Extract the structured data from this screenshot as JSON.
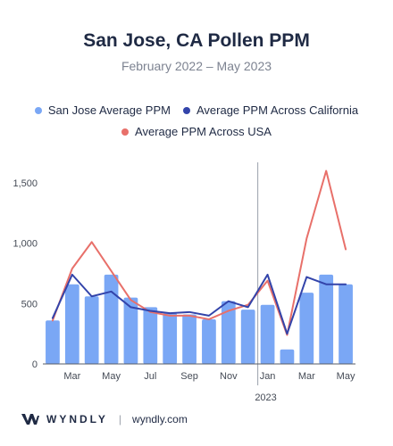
{
  "chart_data": {
    "type": "bar",
    "title": "San Jose, CA Pollen PPM",
    "subtitle": "February 2022 – May 2023",
    "x": [
      "Feb 2022",
      "Mar 2022",
      "Apr 2022",
      "May 2022",
      "Jun 2022",
      "Jul 2022",
      "Aug 2022",
      "Sep 2022",
      "Oct 2022",
      "Nov 2022",
      "Dec 2022",
      "Jan 2023",
      "Feb 2023",
      "Mar 2023",
      "Apr 2023",
      "May 2023"
    ],
    "x_tick_labels": [
      {
        "index": 1,
        "label": "Mar"
      },
      {
        "index": 3,
        "label": "May"
      },
      {
        "index": 5,
        "label": "Jul"
      },
      {
        "index": 7,
        "label": "Sep"
      },
      {
        "index": 9,
        "label": "Nov"
      },
      {
        "index": 11,
        "label": "Jan"
      },
      {
        "index": 13,
        "label": "Mar"
      },
      {
        "index": 15,
        "label": "May"
      }
    ],
    "year_label": {
      "index": 11,
      "label": "2023"
    },
    "ylim": [
      0,
      1700
    ],
    "y_ticks": [
      0,
      500,
      1000,
      1500
    ],
    "y_tick_labels": [
      "0",
      "500",
      "1,000",
      "1,500"
    ],
    "grid": false,
    "legend_position": "top",
    "divider_index": 10.5,
    "series": [
      {
        "name": "San Jose Average PPM",
        "type": "bar",
        "color": "#7aa7f5",
        "values": [
          360,
          660,
          560,
          740,
          550,
          470,
          420,
          410,
          370,
          520,
          450,
          490,
          120,
          590,
          740,
          660
        ]
      },
      {
        "name": "Average PPM Across California",
        "type": "line",
        "color": "#3344aa",
        "values": [
          380,
          740,
          560,
          600,
          470,
          440,
          420,
          430,
          400,
          520,
          470,
          740,
          250,
          720,
          660,
          660
        ]
      },
      {
        "name": "Average PPM Across USA",
        "type": "line",
        "color": "#e8706a",
        "values": [
          360,
          790,
          1010,
          770,
          530,
          430,
          400,
          400,
          370,
          440,
          490,
          690,
          240,
          1040,
          1600,
          950
        ]
      }
    ]
  },
  "footer": {
    "brand": "WYNDLY",
    "site": "wyndly.com"
  },
  "colors": {
    "axis": "#555b66",
    "divider": "#9aa0ab",
    "tick_text": "#444a55"
  }
}
